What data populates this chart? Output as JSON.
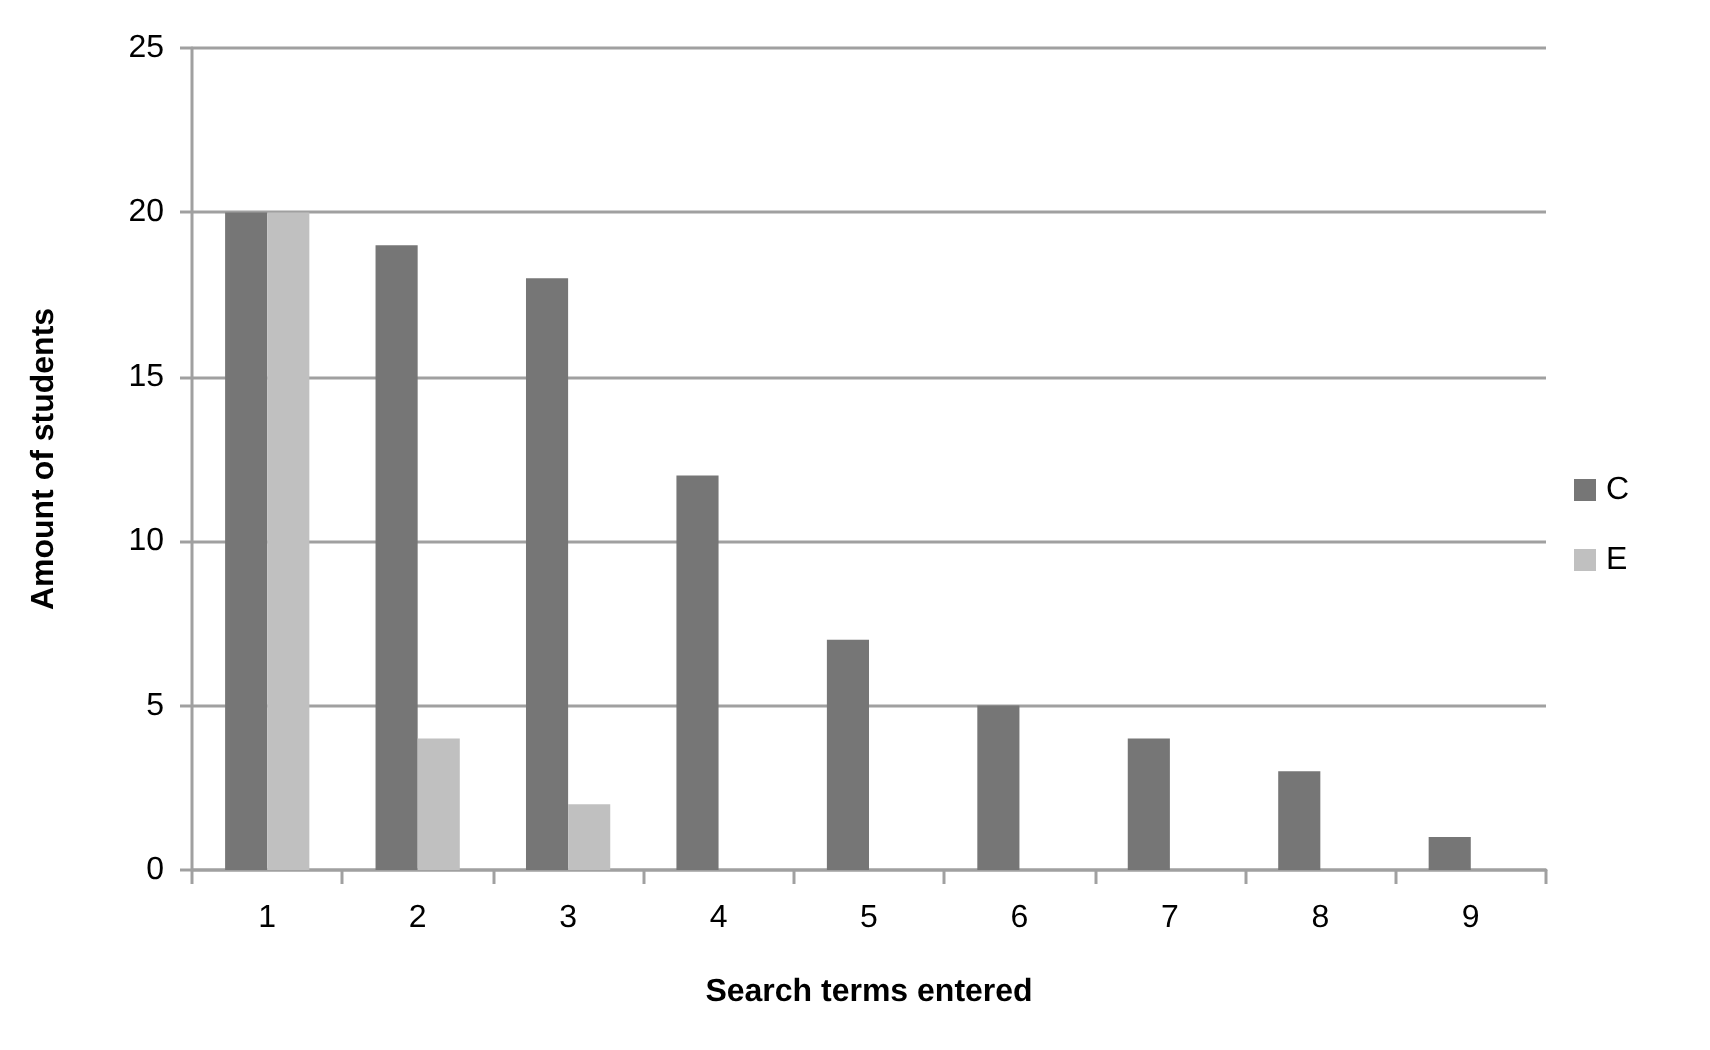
{
  "chart_data": {
    "type": "bar",
    "xlabel": "Search terms entered",
    "ylabel": "Amount of students",
    "categories": [
      "1",
      "2",
      "3",
      "4",
      "5",
      "6",
      "7",
      "8",
      "9"
    ],
    "series": [
      {
        "name": "C",
        "color": "#767676",
        "values": [
          20,
          19,
          18,
          12,
          7,
          5,
          4,
          3,
          1
        ]
      },
      {
        "name": "E",
        "color": "#c0c0c0",
        "values": [
          20,
          4,
          2,
          0,
          0,
          0,
          0,
          0,
          0
        ]
      }
    ],
    "ylim": [
      0,
      25
    ],
    "yticks": [
      0,
      5,
      10,
      15,
      20,
      25
    ],
    "grid": "y",
    "legend": "right"
  }
}
